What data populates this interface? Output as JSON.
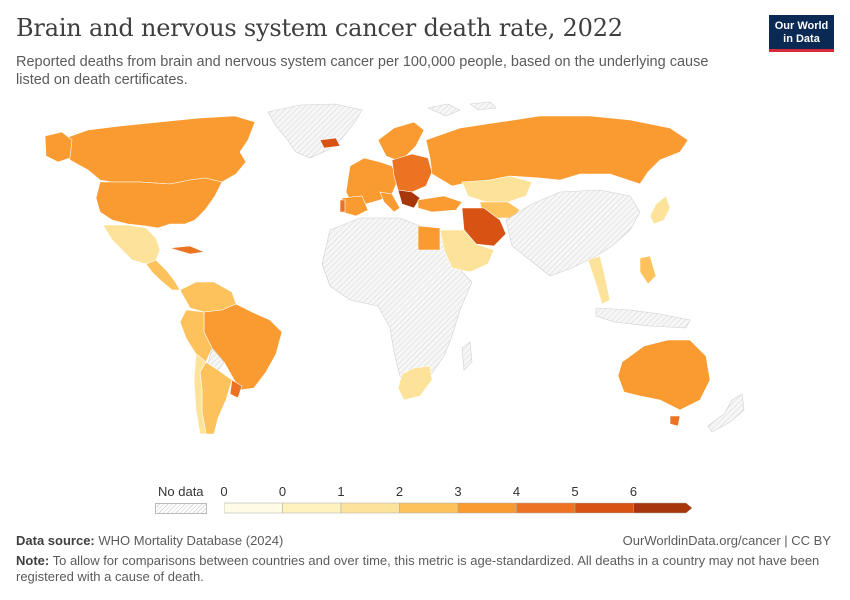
{
  "header": {
    "title": "Brain and nervous system cancer death rate, 2022",
    "subtitle": "Reported deaths from brain and nervous system cancer per 100,000 people, based on the underlying cause listed on death certificates.",
    "logo_line1": "Our World",
    "logo_line2": "in Data"
  },
  "legend": {
    "no_data_label": "No data",
    "ticks": [
      "0",
      "0",
      "1",
      "2",
      "3",
      "4",
      "5",
      "6"
    ],
    "colors": [
      "#fffbe4",
      "#fff2bf",
      "#fde39a",
      "#fdc25c",
      "#f99b30",
      "#ec7321",
      "#d85313",
      "#a8360b"
    ]
  },
  "footer": {
    "source_label": "Data source:",
    "source_text": "WHO Mortality Database (2024)",
    "url_text": "OurWorldinData.org/cancer | CC BY",
    "note_label": "Note:",
    "note_text": "To allow for comparisons between countries and over time, this metric is age-standardized. All deaths in a country may not have been registered with a cause of death."
  },
  "map_colors": {
    "no_data_fill": "#eeeeee",
    "no_data_stroke": "#d8d8d8",
    "border": "#ffffff"
  }
}
